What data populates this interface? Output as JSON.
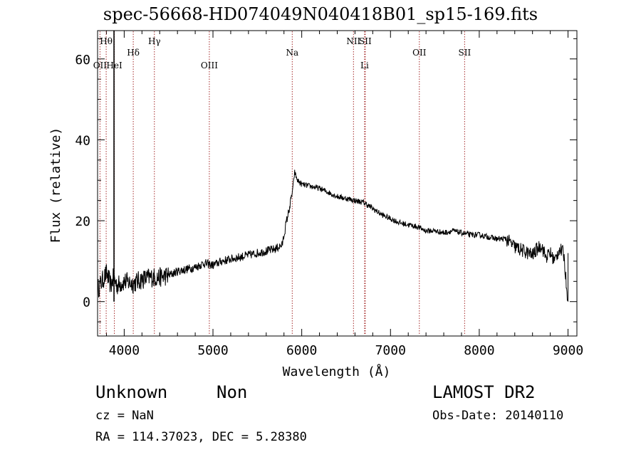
{
  "title": "spec-56668-HD074049N040418B01_sp15-169.fits",
  "info": {
    "obj_class": "Unknown",
    "obj_subclass": "Non",
    "survey": "LAMOST DR2",
    "cz": "cz = NaN",
    "obs_date": "Obs-Date: 20140110",
    "radec": "RA = 114.37023, DEC =   5.28380"
  },
  "chart_data": {
    "type": "line",
    "xlabel": "Wavelength (Å)",
    "ylabel": "Flux (relative)",
    "xlim": [
      3700,
      9100
    ],
    "ylim": [
      -8.5,
      67
    ],
    "xticks": [
      4000,
      5000,
      6000,
      7000,
      8000,
      9000
    ],
    "yticks": [
      0,
      20,
      40,
      60
    ],
    "grid": false,
    "line_color": "#000000",
    "marker_color": "#a52a2a",
    "lines": [
      {
        "label": "Hθ",
        "wavelength": 3797,
        "row": 0
      },
      {
        "label": "OII",
        "wavelength": 3727,
        "row": 2
      },
      {
        "label": "HeI",
        "wavelength": 3889,
        "row": 2
      },
      {
        "label": "Hδ",
        "wavelength": 4102,
        "row": 1
      },
      {
        "label": "Hγ",
        "wavelength": 4340,
        "row": 0
      },
      {
        "label": "OIII",
        "wavelength": 4959,
        "row": 2
      },
      {
        "label": "Na",
        "wavelength": 5893,
        "row": 1
      },
      {
        "label": "NII",
        "wavelength": 6583,
        "row": 0
      },
      {
        "label": "SII",
        "wavelength": 6716,
        "row": 0
      },
      {
        "label": "Li",
        "wavelength": 6708,
        "row": 2
      },
      {
        "label": "OII",
        "wavelength": 7325,
        "row": 1
      },
      {
        "label": "SII",
        "wavelength": 7835,
        "row": 1
      }
    ],
    "series": [
      {
        "x": [
          3700,
          3750,
          3800,
          3850,
          3880,
          3920,
          4000,
          4100,
          4200,
          4300,
          4400,
          4500,
          4600,
          4700,
          4800,
          4900,
          5000,
          5100,
          5200,
          5300,
          5400,
          5500,
          5600,
          5700,
          5780,
          5830,
          5870,
          5900,
          5920,
          5950,
          6000,
          6100,
          6200,
          6300,
          6400,
          6500,
          6600,
          6700,
          6800,
          6900,
          7000,
          7100,
          7200,
          7300,
          7400,
          7500,
          7600,
          7700,
          7800,
          7900,
          8000,
          8100,
          8200,
          8300,
          8350,
          8400,
          8450,
          8500,
          8550,
          8600,
          8650,
          8700,
          8750,
          8800,
          8850,
          8900,
          8950,
          9000
        ],
        "y": [
          3,
          5,
          7,
          4,
          6,
          4,
          5,
          4.5,
          5.5,
          6,
          6,
          6.5,
          7.5,
          8,
          8.5,
          9.5,
          9,
          10,
          10.5,
          11,
          11.5,
          12,
          12.5,
          13,
          14,
          20,
          24,
          28,
          32,
          30,
          29,
          28.5,
          28,
          27,
          26,
          25.5,
          25,
          24.5,
          23,
          21.5,
          20.5,
          19.5,
          19,
          18.5,
          17.5,
          17.5,
          17,
          17.5,
          17,
          16.5,
          16.5,
          16,
          15.5,
          15.5,
          14.5,
          13.5,
          13,
          12.5,
          12,
          11.5,
          13,
          14,
          11,
          12,
          10,
          13,
          12,
          0
        ]
      }
    ]
  }
}
